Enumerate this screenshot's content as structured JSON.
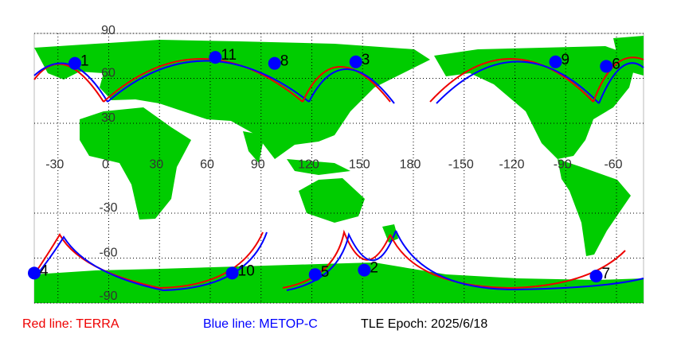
{
  "map": {
    "lon_range": [
      -44,
      316
    ],
    "lat_range": [
      -90,
      90
    ],
    "lon_ticks": [
      -30,
      0,
      30,
      60,
      90,
      120,
      150,
      180,
      -150,
      -120,
      -90,
      -60
    ],
    "lat_ticks": [
      90,
      60,
      30,
      -30,
      -60,
      -90
    ],
    "points": [
      {
        "label": "1",
        "lon": -20,
        "lat": 70
      },
      {
        "label": "2",
        "lon": 151,
        "lat": -68
      },
      {
        "label": "3",
        "lon": 146,
        "lat": 71
      },
      {
        "label": "4",
        "lon": -44,
        "lat": -70
      },
      {
        "label": "5",
        "lon": 122,
        "lat": -71
      },
      {
        "label": "6",
        "lon": -66,
        "lat": 68
      },
      {
        "label": "7",
        "lon": -72,
        "lat": -72
      },
      {
        "label": "8",
        "lon": 98,
        "lat": 70
      },
      {
        "label": "9",
        "lon": -96,
        "lat": 71
      },
      {
        "label": "10",
        "lon": 73,
        "lat": -70
      },
      {
        "label": "11",
        "lon": 63,
        "lat": 74
      }
    ]
  },
  "legend": {
    "red": "Red line: TERRA",
    "blue": "Blue line: METOP-C",
    "epoch": "TLE Epoch: 2025/6/18"
  }
}
